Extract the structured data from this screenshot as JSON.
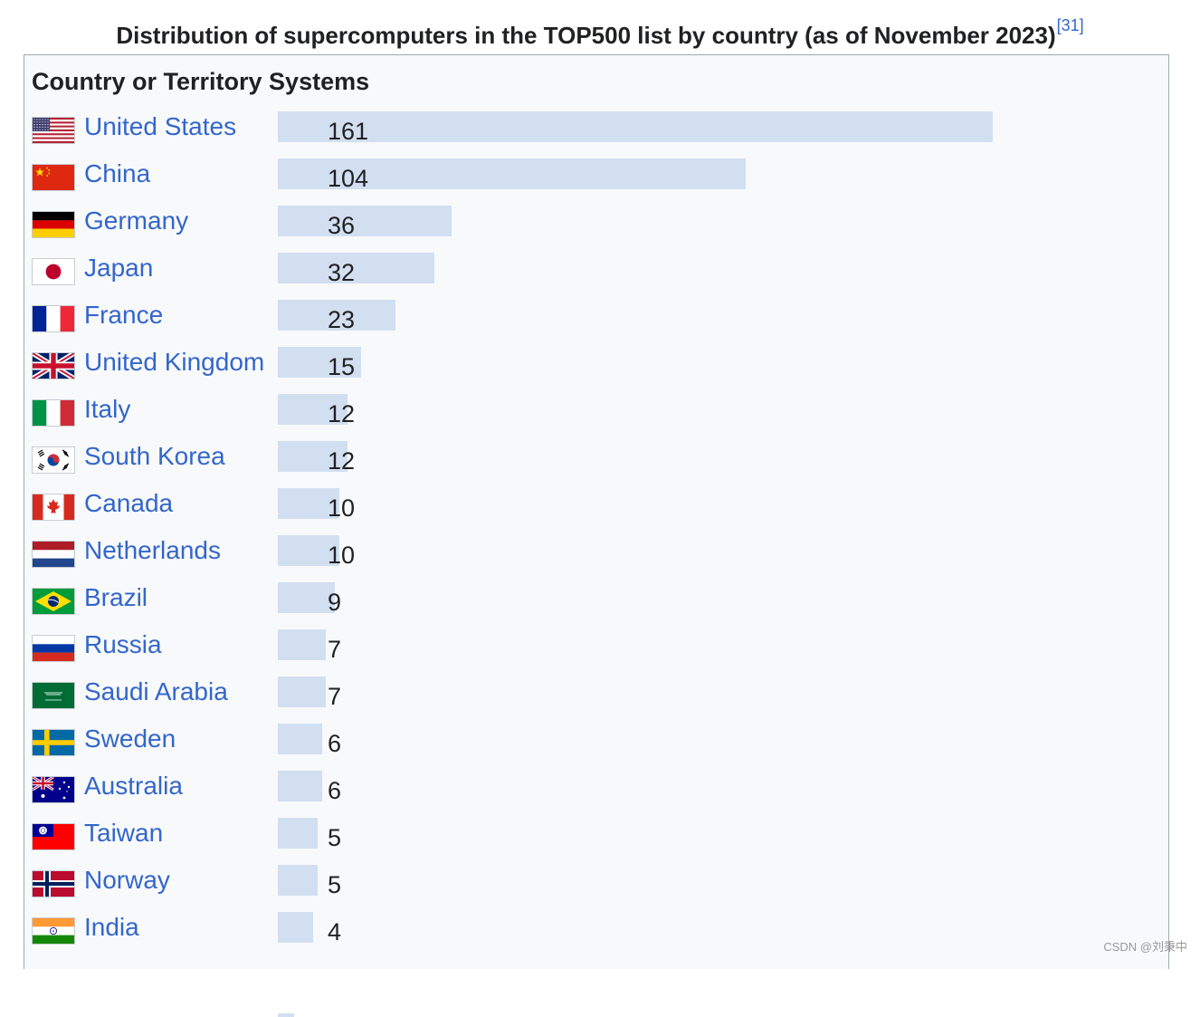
{
  "caption": {
    "text": "Distribution of supercomputers in the TOP500 list by country (as of November 2023)",
    "ref": "[31]"
  },
  "header": {
    "country": "Country or Territory",
    "systems": "Systems"
  },
  "watermark": "CSDN @刘秉中",
  "chart_data": {
    "type": "bar",
    "orientation": "horizontal",
    "title": "Distribution of supercomputers in the TOP500 list by country (as of November 2023)",
    "xlabel": "Systems",
    "ylabel": "Country or Territory",
    "xlim": [
      0,
      161
    ],
    "categories": [
      "United States",
      "China",
      "Germany",
      "Japan",
      "France",
      "United Kingdom",
      "Italy",
      "South Korea",
      "Canada",
      "Netherlands",
      "Brazil",
      "Russia",
      "Saudi Arabia",
      "Sweden",
      "Australia",
      "Taiwan",
      "Norway",
      "India"
    ],
    "values": [
      161,
      104,
      36,
      32,
      23,
      15,
      12,
      12,
      10,
      10,
      9,
      7,
      7,
      6,
      6,
      5,
      5,
      4
    ],
    "flags": [
      "us-flag-icon",
      "cn-flag-icon",
      "de-flag-icon",
      "jp-flag-icon",
      "fr-flag-icon",
      "gb-flag-icon",
      "it-flag-icon",
      "kr-flag-icon",
      "ca-flag-icon",
      "nl-flag-icon",
      "br-flag-icon",
      "ru-flag-icon",
      "sa-flag-icon",
      "se-flag-icon",
      "au-flag-icon",
      "tw-flag-icon",
      "no-flag-icon",
      "in-flag-icon"
    ],
    "colors": {
      "bar": "#d2dff1",
      "link": "#3366cc",
      "text": "#202122"
    }
  }
}
